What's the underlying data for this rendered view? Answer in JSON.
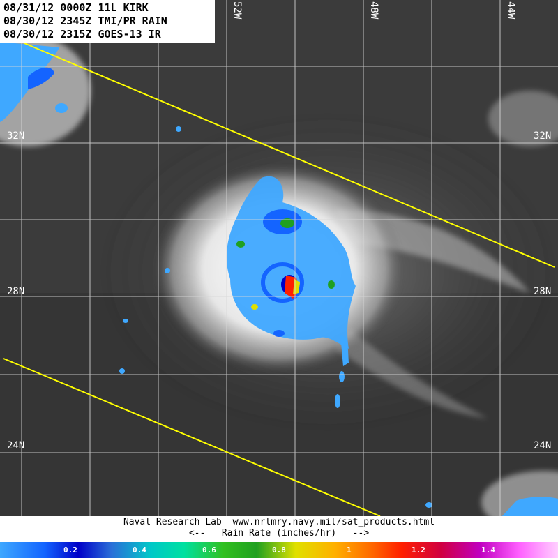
{
  "title_lines": [
    "08/31/12 0000Z 11L KIRK",
    "08/30/12 2345Z TMI/PR RAIN",
    "08/30/12 2315Z GOES-13 IR"
  ],
  "latitude_labels": {
    "lat_32n": "32N",
    "lat_28n": "28N",
    "lat_24n": "24N"
  },
  "longitude_labels": {
    "lon_52w": "52W",
    "lon_48w": "48W",
    "lon_44w": "44W"
  },
  "credit": {
    "line1": "Naval Research Lab  www.nrlmry.navy.mil/sat_products.html",
    "line2": "<--   Rain Rate (inches/hr)   -->"
  },
  "colorbar": {
    "ticks": [
      "0.2",
      "0.4",
      "0.6",
      "0.8",
      "1",
      "1.2",
      "1.4"
    ],
    "tick_colors": [
      "#ffffff",
      "#ffffff",
      "#ffffff",
      "#ffffff",
      "#ffffff",
      "#ffffff",
      "#ffffff"
    ]
  },
  "colors": {
    "ocean": "#3a3a3a",
    "grid": "#d8d8d8",
    "swath_edge": "#ffff00",
    "cloud": "#e8e8e8",
    "light_rain": "#3fa8ff",
    "moderate_rain": "#1464ff",
    "heavy_rain": "#0000c8",
    "very_heavy_rain": "#ff2000"
  }
}
